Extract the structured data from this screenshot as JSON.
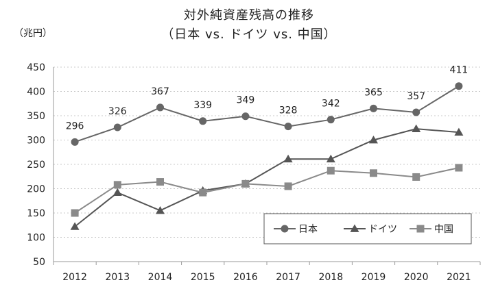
{
  "chart_data": {
    "type": "line",
    "title": "対外純資産残高の推移",
    "subtitle": "（日本 vs. ドイツ vs. 中国）",
    "unit_label": "（兆円）",
    "categories": [
      "2012",
      "2013",
      "2014",
      "2015",
      "2016",
      "2017",
      "2018",
      "2019",
      "2020",
      "2021"
    ],
    "ylim": [
      50,
      450
    ],
    "yticks": [
      50,
      100,
      150,
      200,
      250,
      300,
      350,
      400,
      450
    ],
    "grid": true,
    "legend_position": "bottom-right",
    "series": [
      {
        "name": "日本",
        "marker": "circle",
        "color": "#666666",
        "data_labels": true,
        "values": [
          296,
          326,
          367,
          339,
          349,
          328,
          342,
          365,
          357,
          411
        ]
      },
      {
        "name": "ドイツ",
        "marker": "triangle",
        "color": "#555555",
        "data_labels": false,
        "values": [
          122,
          192,
          155,
          196,
          210,
          261,
          261,
          300,
          323,
          316
        ]
      },
      {
        "name": "中国",
        "marker": "square",
        "color": "#8a8a8a",
        "data_labels": false,
        "values": [
          150,
          208,
          214,
          192,
          210,
          205,
          237,
          232,
          224,
          243
        ]
      }
    ]
  }
}
